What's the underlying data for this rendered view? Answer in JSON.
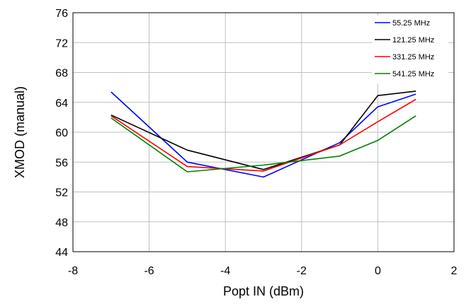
{
  "chart_data": {
    "type": "line",
    "title": "",
    "xlabel": "Popt IN (dBm)",
    "ylabel": "XMOD (manual)",
    "xlim": [
      -8,
      2
    ],
    "ylim": [
      44,
      76
    ],
    "xticks": [
      -8,
      -6,
      -4,
      -2,
      0,
      2
    ],
    "yticks": [
      44,
      48,
      52,
      56,
      60,
      64,
      68,
      72,
      76
    ],
    "grid": true,
    "legend_position": "top-right",
    "x": [
      -7,
      -5,
      -3,
      -1,
      0,
      1
    ],
    "series": [
      {
        "name": "55.25 MHz",
        "color": "#0000ff",
        "values": [
          65.4,
          56.0,
          54.0,
          58.6,
          63.4,
          65.1
        ]
      },
      {
        "name": "121.25 MHz",
        "color": "#000000",
        "values": [
          62.3,
          57.6,
          55.0,
          58.3,
          64.9,
          65.5
        ]
      },
      {
        "name": "331.25 MHz",
        "color": "#ff0000",
        "values": [
          62.2,
          55.4,
          54.8,
          58.3,
          61.4,
          64.4
        ]
      },
      {
        "name": "541.25 MHz",
        "color": "#008000",
        "values": [
          61.9,
          54.7,
          55.6,
          56.8,
          58.9,
          62.2
        ]
      }
    ]
  }
}
